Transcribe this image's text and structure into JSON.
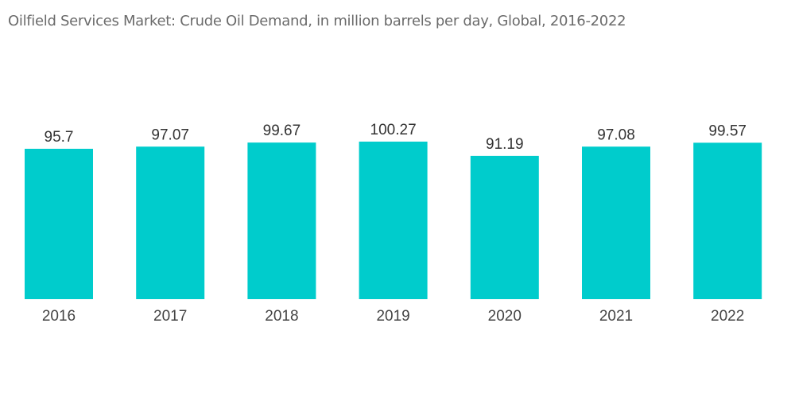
{
  "title": "Oilfield Services Market: Crude Oil Demand, in million barrels per day, Global, 2016-2022",
  "colors": {
    "bar": "#00cccc",
    "title": "#6b6b6b",
    "label": "#333333"
  },
  "chart_data": {
    "type": "bar",
    "title": "Oilfield Services Market: Crude Oil Demand, in million barrels per day, Global, 2016-2022",
    "xlabel": "",
    "ylabel": "",
    "categories": [
      "2016",
      "2017",
      "2018",
      "2019",
      "2020",
      "2021",
      "2022"
    ],
    "values": [
      95.7,
      97.07,
      99.67,
      100.27,
      91.19,
      97.08,
      99.57
    ],
    "value_labels": [
      "95.7",
      "97.07",
      "99.67",
      "100.27",
      "91.19",
      "97.08",
      "99.57"
    ],
    "ylim": [
      0,
      100.27
    ],
    "grid": false,
    "legend": "none",
    "y_axis_visible": false
  }
}
